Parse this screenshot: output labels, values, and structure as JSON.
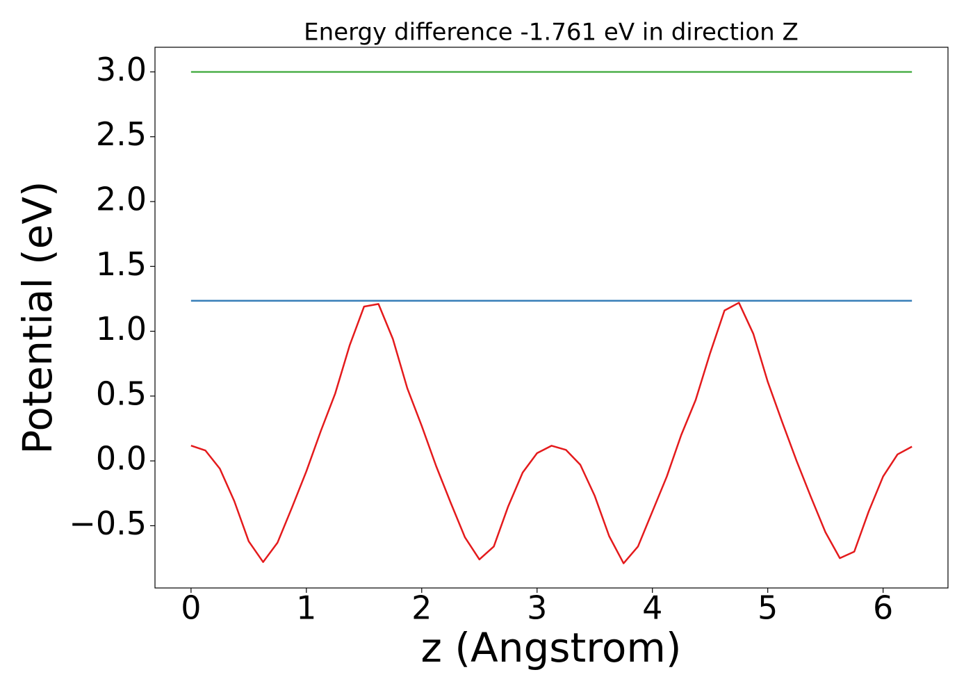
{
  "chart_data": {
    "type": "line",
    "title": "Energy difference -1.761 eV in direction Z",
    "x_label": "z (Angstrom)",
    "y_label": "Potential (eV)",
    "xlim": [
      -0.3125,
      6.5625
    ],
    "ylim": [
      -0.98,
      3.19
    ],
    "xticks": [
      0,
      1,
      2,
      3,
      4,
      5,
      6
    ],
    "yticks": [
      {
        "value": -0.5,
        "label": "−0.5"
      },
      {
        "value": 0,
        "label": "0.0"
      },
      0.5,
      {
        "value": 1,
        "label": "1.0"
      },
      1.5,
      {
        "value": 2,
        "label": "2.0"
      },
      2.5,
      {
        "value": 3,
        "label": "3.0"
      }
    ],
    "grid": false,
    "series": [
      {
        "color": "#4daf4a",
        "x": [
          0,
          6.25
        ],
        "values": [
          3.0,
          3.0
        ]
      },
      {
        "color": "#377eb8",
        "x": [
          0,
          6.25
        ],
        "values": [
          1.235,
          1.235
        ]
      },
      {
        "color": "#e41a1c",
        "x": [
          0,
          0.125,
          0.25,
          0.375,
          0.5,
          0.625,
          0.75,
          0.875,
          1.0,
          1.125,
          1.25,
          1.375,
          1.5,
          1.625,
          1.75,
          1.875,
          2.0,
          2.125,
          2.25,
          2.375,
          2.5,
          2.625,
          2.75,
          2.875,
          3.0,
          3.125,
          3.25,
          3.375,
          3.5,
          3.625,
          3.75,
          3.875,
          4.0,
          4.125,
          4.25,
          4.375,
          4.5,
          4.625,
          4.75,
          4.875,
          5.0,
          5.125,
          5.25,
          5.375,
          5.5,
          5.625,
          5.75,
          5.875,
          6.0,
          6.125,
          6.25
        ],
        "values": [
          0.118,
          0.08,
          -0.06,
          -0.31,
          -0.62,
          -0.78,
          -0.63,
          -0.36,
          -0.08,
          0.23,
          0.52,
          0.89,
          1.19,
          1.21,
          0.94,
          0.56,
          0.27,
          -0.04,
          -0.32,
          -0.59,
          -0.76,
          -0.66,
          -0.35,
          -0.09,
          0.06,
          0.117,
          0.085,
          -0.03,
          -0.27,
          -0.58,
          -0.79,
          -0.66,
          -0.39,
          -0.12,
          0.2,
          0.47,
          0.83,
          1.16,
          1.22,
          0.98,
          0.61,
          0.3,
          0.0,
          -0.28,
          -0.55,
          -0.75,
          -0.7,
          -0.39,
          -0.12,
          0.05,
          0.11
        ]
      }
    ]
  }
}
